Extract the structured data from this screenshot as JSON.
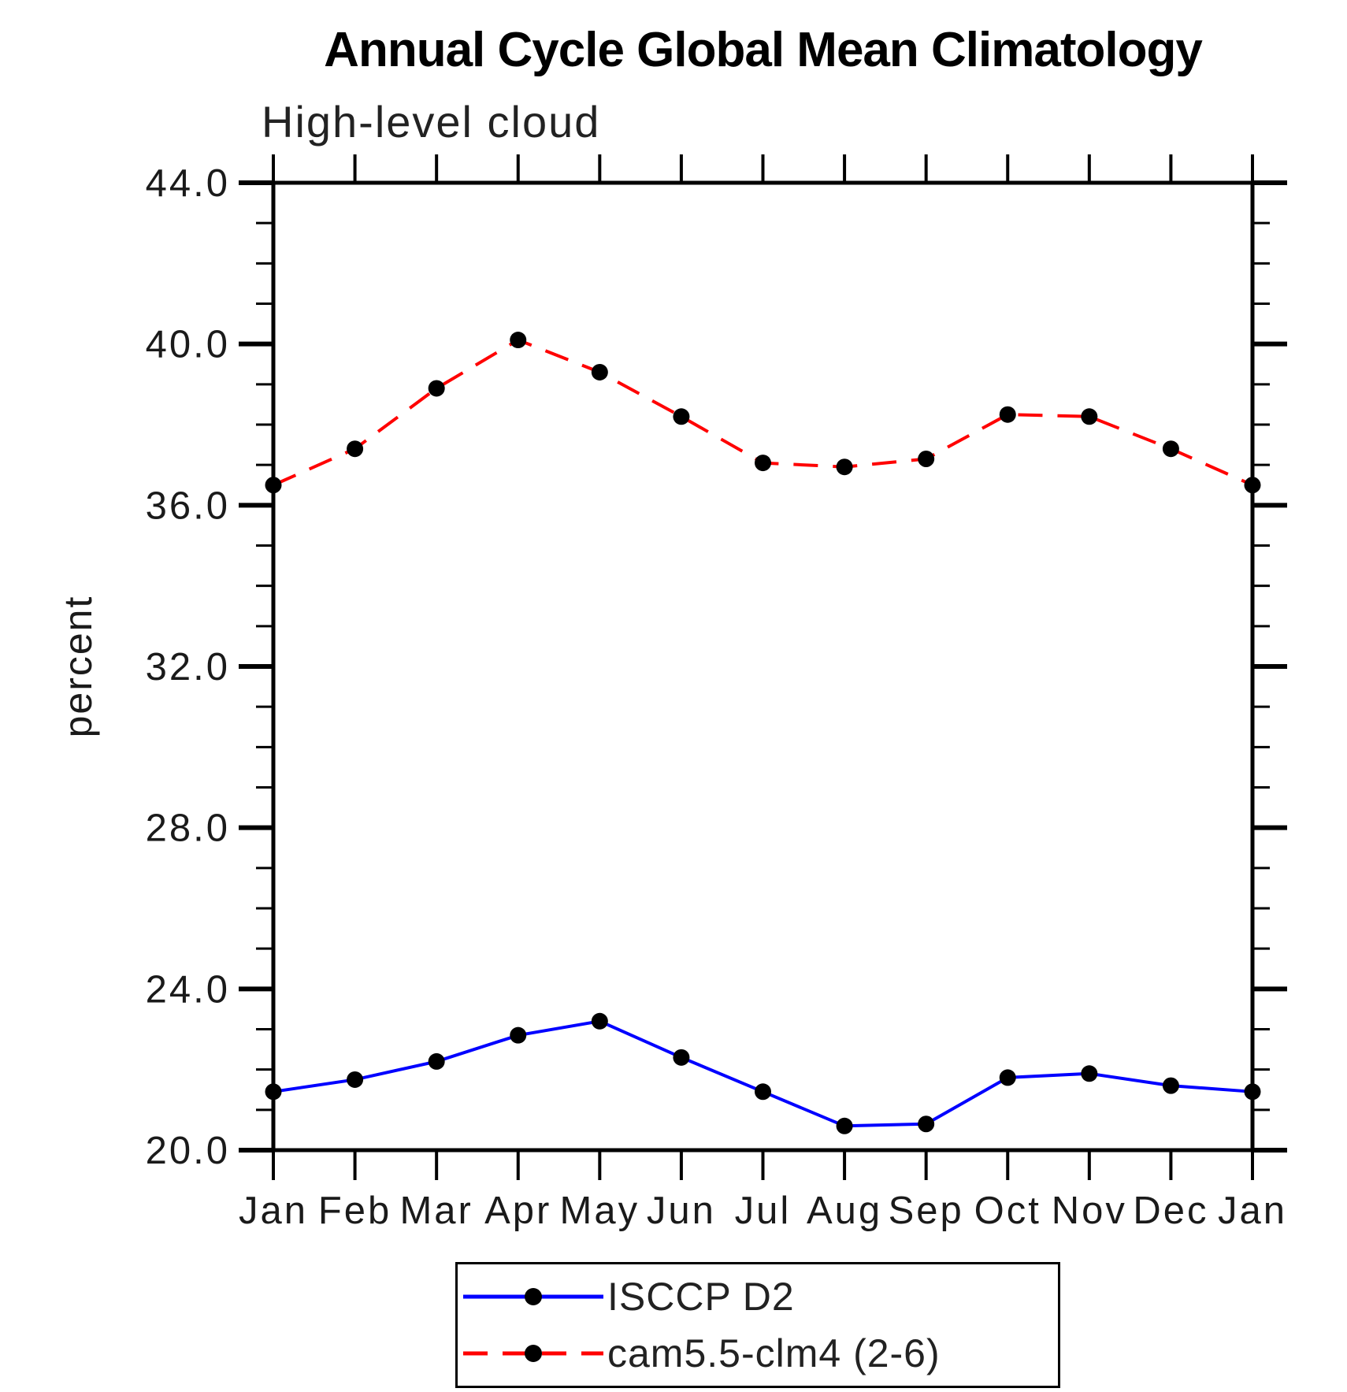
{
  "title": "Annual Cycle Global Mean Climatology",
  "subtitle": "High-level cloud",
  "chart_data": {
    "type": "line",
    "title": "Annual Cycle Global Mean Climatology",
    "subtitle": "High-level cloud",
    "xlabel": "",
    "ylabel": "percent",
    "ylim": [
      20.0,
      44.0
    ],
    "ytick_major_values": [
      44.0,
      40.0,
      36.0,
      32.0,
      28.0,
      24.0,
      20.0
    ],
    "ytick_major_labels": [
      "44.0",
      "40.0",
      "36.0",
      "32.0",
      "28.0",
      "24.0",
      "20.0"
    ],
    "ytick_minor_step": 1,
    "x_categories": [
      "Jan",
      "Feb",
      "Mar",
      "Apr",
      "May",
      "Jun",
      "Jul",
      "Aug",
      "Sep",
      "Oct",
      "Nov",
      "Dec",
      "Jan"
    ],
    "grid": false,
    "legend_position": "bottom-center",
    "axis_color": "#000000",
    "marker_color": "#000000",
    "series": [
      {
        "name": "ISCCP D2",
        "color": "#0000ff",
        "line_style": "solid",
        "marker": "filled-circle",
        "values": [
          21.45,
          21.75,
          22.2,
          22.85,
          23.2,
          22.3,
          21.45,
          20.6,
          20.65,
          21.8,
          21.9,
          21.6,
          21.45
        ]
      },
      {
        "name": "cam5.5-clm4 (2-6)",
        "color": "#ff0000",
        "line_style": "dashed",
        "marker": "filled-circle",
        "values": [
          36.5,
          37.4,
          38.9,
          40.1,
          39.3,
          38.2,
          37.05,
          36.95,
          37.15,
          38.25,
          38.2,
          37.4,
          36.5
        ]
      }
    ]
  }
}
